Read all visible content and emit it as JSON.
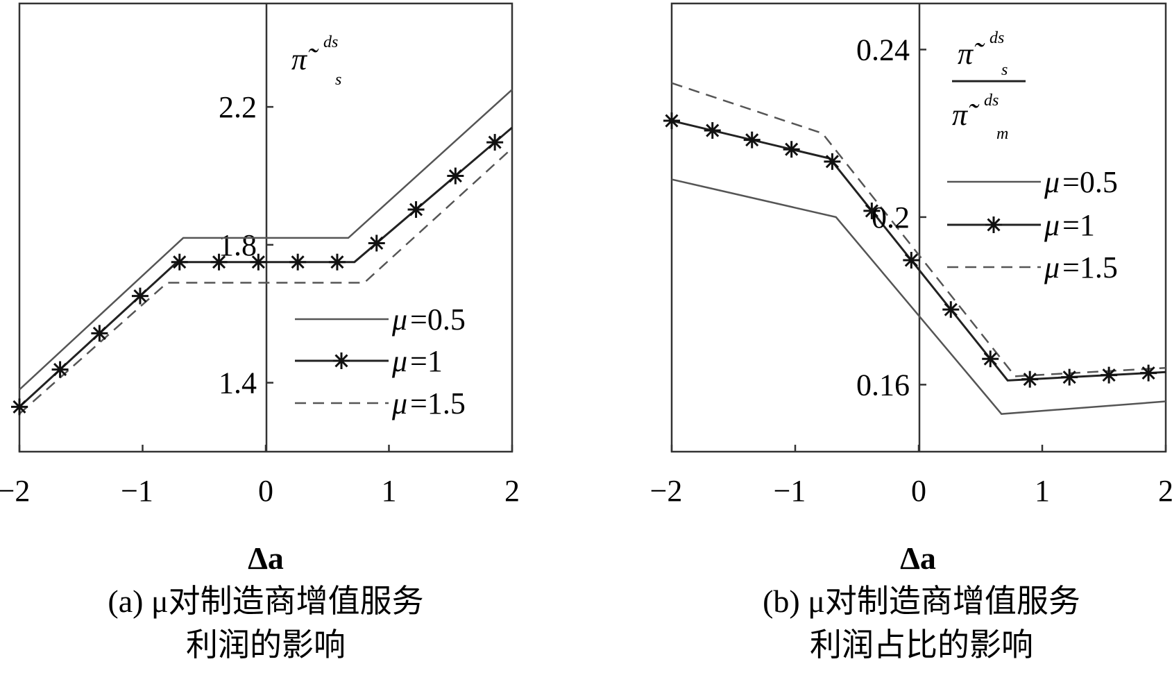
{
  "chart_data": [
    {
      "type": "line",
      "panel": "a",
      "xlabel": "Δa",
      "ylabel": {
        "symbol": "π̃",
        "sup": "ds",
        "sub": "s"
      },
      "caption": [
        "(a) μ对制造商增值服务",
        "利润的影响"
      ],
      "xlim": [
        -2,
        2
      ],
      "ylim": [
        1.2,
        2.5
      ],
      "xticks": [
        "−2",
        "−1",
        "0",
        "1",
        "2"
      ],
      "yticks": [
        {
          "value": 1.4,
          "label": "1.4"
        },
        {
          "value": 1.8,
          "label": "1.8"
        },
        {
          "value": 2.2,
          "label": "2.2"
        }
      ],
      "legend": {
        "position": "lower-right",
        "entries": [
          {
            "mu_label": "μ",
            "label": "=0.5",
            "style": "solid"
          },
          {
            "mu_label": "μ",
            "label": "=1",
            "style": "star"
          },
          {
            "mu_label": "μ",
            "label": "=1.5",
            "style": "dashed"
          }
        ]
      },
      "series": [
        {
          "name": "μ=0.5",
          "style": "solid",
          "x": [
            -2,
            -0.67,
            0.67,
            2
          ],
          "y": [
            1.38,
            1.82,
            1.82,
            2.25
          ]
        },
        {
          "name": "μ=1",
          "style": "star",
          "x": [
            -2,
            -0.72,
            0.72,
            2
          ],
          "y": [
            1.33,
            1.75,
            1.75,
            2.14
          ]
        },
        {
          "name": "μ=1.5",
          "style": "dashed",
          "x": [
            -2,
            -0.8,
            0.8,
            2
          ],
          "y": [
            1.31,
            1.69,
            1.69,
            2.08
          ]
        }
      ],
      "markers_x": [
        -2,
        -1.67,
        -1.35,
        -1.02,
        -0.7,
        -0.38,
        -0.06,
        0.26,
        0.58,
        0.9,
        1.22,
        1.54,
        1.86
      ]
    },
    {
      "type": "line",
      "panel": "b",
      "xlabel": "Δa",
      "ylabel": {
        "numerator": {
          "symbol": "π̃",
          "sup": "ds",
          "sub": "s"
        },
        "denominator": {
          "symbol": "π̃",
          "sup": "ds",
          "sub": "m"
        }
      },
      "caption": [
        "(b) μ对制造商增值服务",
        "利润占比的影响"
      ],
      "xlim": [
        -2,
        2
      ],
      "ylim": [
        0.144,
        0.251
      ],
      "xticks": [
        "−2",
        "−1",
        "0",
        "1",
        "2"
      ],
      "yticks": [
        {
          "value": 0.16,
          "label": "0.16"
        },
        {
          "value": 0.2,
          "label": "0.2"
        },
        {
          "value": 0.24,
          "label": "0.24"
        }
      ],
      "legend": {
        "position": "upper-right",
        "entries": [
          {
            "mu_label": "μ",
            "label": "=0.5",
            "style": "solid"
          },
          {
            "mu_label": "μ",
            "label": "=1",
            "style": "star"
          },
          {
            "mu_label": "μ",
            "label": "=1.5",
            "style": "dashed"
          }
        ]
      },
      "series": [
        {
          "name": "μ=0.5",
          "style": "solid",
          "x": [
            -2,
            -0.67,
            0.67,
            2
          ],
          "y": [
            0.209,
            0.2,
            0.153,
            0.156
          ]
        },
        {
          "name": "μ=1",
          "style": "star",
          "x": [
            -2,
            -0.72,
            0.72,
            2
          ],
          "y": [
            0.223,
            0.214,
            0.161,
            0.163
          ]
        },
        {
          "name": "μ=1.5",
          "style": "dashed",
          "x": [
            -2,
            -0.78,
            0.78,
            2
          ],
          "y": [
            0.232,
            0.22,
            0.162,
            0.164
          ]
        }
      ],
      "markers_x": [
        -2,
        -1.67,
        -1.35,
        -1.03,
        -0.7,
        -0.38,
        -0.06,
        0.26,
        0.58,
        0.9,
        1.22,
        1.54,
        1.86
      ]
    }
  ]
}
